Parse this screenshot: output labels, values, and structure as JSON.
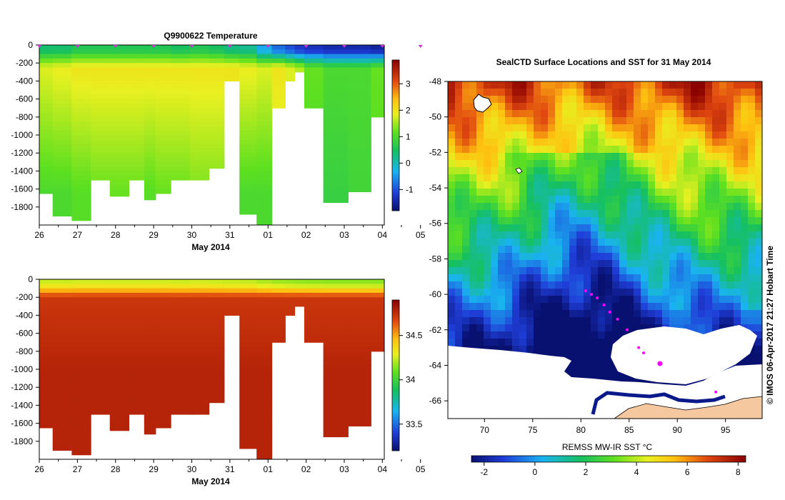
{
  "temperature_panel": {
    "title": "Q9900622  Temperature",
    "month_label": "May 2014",
    "colorbar_ticks": [
      "3",
      "2",
      "1",
      "0",
      "-1"
    ]
  },
  "salinity_panel": {
    "title": "",
    "month_label": "May 2014",
    "colorbar_ticks": [
      "34.5",
      "34",
      "33.5"
    ]
  },
  "map_panel": {
    "title": "SealCTD Surface Locations and SST for 31 May 2014",
    "colorbar_label": "REMSS MW-IR SST °C",
    "colorbar_ticks": [
      "-2",
      "0",
      "2",
      "4",
      "6",
      "8"
    ],
    "credit": "© IMOS 06-Apr-2017 21:27 Hobart Time"
  },
  "colors": {
    "land": "#f5c8a0",
    "ice": "#ffffff",
    "track": "#ff00ff"
  },
  "chart_data": [
    {
      "type": "heatmap",
      "title": "Q9900622  Temperature",
      "xlabel": "May 2014",
      "ylabel": "",
      "x_tick_labels": [
        "26",
        "27",
        "28",
        "29",
        "30",
        "31",
        "01",
        "02",
        "03",
        "04",
        "05"
      ],
      "y_tick_labels": [
        "0",
        "-200",
        "-400",
        "-600",
        "-800",
        "-1000",
        "-1200",
        "-1400",
        "-1600",
        "-1800"
      ],
      "ylim": [
        -2000,
        0
      ],
      "colorbar_range": [
        -1.8,
        3.9
      ],
      "profiles": [
        {
          "x": 26.1,
          "max_depth": -1650,
          "surface": 0.4,
          "mid": 1.8,
          "deep": 1.0
        },
        {
          "x": 26.6,
          "max_depth": -1900,
          "surface": 0.4,
          "mid": 1.9,
          "deep": 1.0
        },
        {
          "x": 27.1,
          "max_depth": -1950,
          "surface": 0.6,
          "mid": 2.0,
          "deep": 1.1
        },
        {
          "x": 27.6,
          "max_depth": -1500,
          "surface": 0.6,
          "mid": 2.0,
          "deep": 1.2
        },
        {
          "x": 28.1,
          "max_depth": -1680,
          "surface": 0.6,
          "mid": 2.0,
          "deep": 1.2
        },
        {
          "x": 28.6,
          "max_depth": -1500,
          "surface": 0.6,
          "mid": 2.0,
          "deep": 1.2
        },
        {
          "x": 28.9,
          "max_depth": -1720,
          "surface": 0.6,
          "mid": 2.0,
          "deep": 1.1
        },
        {
          "x": 29.2,
          "max_depth": -1650,
          "surface": 0.6,
          "mid": 2.0,
          "deep": 1.2
        },
        {
          "x": 29.7,
          "max_depth": -1500,
          "surface": 0.5,
          "mid": 2.0,
          "deep": 1.2
        },
        {
          "x": 30.2,
          "max_depth": -1500,
          "surface": 0.6,
          "mid": 2.0,
          "deep": 1.3
        },
        {
          "x": 30.7,
          "max_depth": -1370,
          "surface": 0.5,
          "mid": 2.0,
          "deep": 1.3
        },
        {
          "x": 31.0,
          "max_depth": -400,
          "surface": 0.3,
          "mid": 2.0,
          "deep": 1.6
        },
        {
          "x": 31.5,
          "max_depth": -1880,
          "surface": 0.2,
          "mid": 1.9,
          "deep": 1.0
        },
        {
          "x": 31.9,
          "max_depth": -2000,
          "surface": -0.4,
          "mid": 1.8,
          "deep": 1.0
        },
        {
          "x": 32.3,
          "max_depth": -700,
          "surface": -0.8,
          "mid": 2.0,
          "deep": 1.6
        },
        {
          "x": 32.6,
          "max_depth": -400,
          "surface": -1.0,
          "mid": 1.8,
          "deep": 1.6
        },
        {
          "x": 32.8,
          "max_depth": -300,
          "surface": -1.2,
          "mid": 1.6,
          "deep": 1.5
        },
        {
          "x": 33.1,
          "max_depth": -700,
          "surface": -1.3,
          "mid": 1.2,
          "deep": 1.0
        },
        {
          "x": 33.8,
          "max_depth": -1750,
          "surface": -1.4,
          "mid": 1.0,
          "deep": 0.8
        },
        {
          "x": 34.4,
          "max_depth": -1630,
          "surface": -1.4,
          "mid": 1.0,
          "deep": 0.9
        },
        {
          "x": 35.0,
          "max_depth": -800,
          "surface": -1.5,
          "mid": 1.2,
          "deep": 1.1
        }
      ]
    },
    {
      "type": "heatmap",
      "title": "",
      "xlabel": "May 2014",
      "ylabel": "",
      "x_tick_labels": [
        "26",
        "27",
        "28",
        "29",
        "30",
        "31",
        "01",
        "02",
        "03",
        "04",
        "05"
      ],
      "y_tick_labels": [
        "0",
        "-200",
        "-400",
        "-600",
        "-800",
        "-1000",
        "-1200",
        "-1400",
        "-1600",
        "-1800"
      ],
      "ylim": [
        -2000,
        0
      ],
      "colorbar_range": [
        33.2,
        34.9
      ],
      "note_profiles_share_positions_with_temperature": true
    },
    {
      "type": "heatmap",
      "title": "SealCTD Surface Locations and SST for 31 May 2014",
      "xlabel": "",
      "ylabel": "",
      "x_tick_labels": [
        "70",
        "75",
        "80",
        "85",
        "90",
        "95"
      ],
      "y_tick_labels": [
        "-48",
        "-50",
        "-52",
        "-54",
        "-56",
        "-58",
        "-60",
        "-62",
        "-64",
        "-66"
      ],
      "xlim": [
        66.2,
        98.8
      ],
      "ylim": [
        -67,
        -48
      ],
      "colorbar_label": "REMSS MW-IR SST °C",
      "colorbar_range": [
        -2.5,
        8.3
      ],
      "colorbar_tick_values": [
        -2,
        0,
        2,
        4,
        6,
        8
      ],
      "surface_locations": [
        {
          "lon": 80.5,
          "lat": -59.8
        },
        {
          "lon": 81.1,
          "lat": -60.0
        },
        {
          "lon": 81.7,
          "lat": -60.2
        },
        {
          "lon": 82.4,
          "lat": -60.6
        },
        {
          "lon": 83.0,
          "lat": -61.0
        },
        {
          "lon": 83.8,
          "lat": -61.4
        },
        {
          "lon": 84.8,
          "lat": -62.0
        },
        {
          "lon": 86.0,
          "lat": -63.0
        },
        {
          "lon": 86.5,
          "lat": -63.3
        },
        {
          "lon": 88.2,
          "lat": -63.9
        },
        {
          "lon": 94.0,
          "lat": -65.5
        }
      ]
    }
  ]
}
